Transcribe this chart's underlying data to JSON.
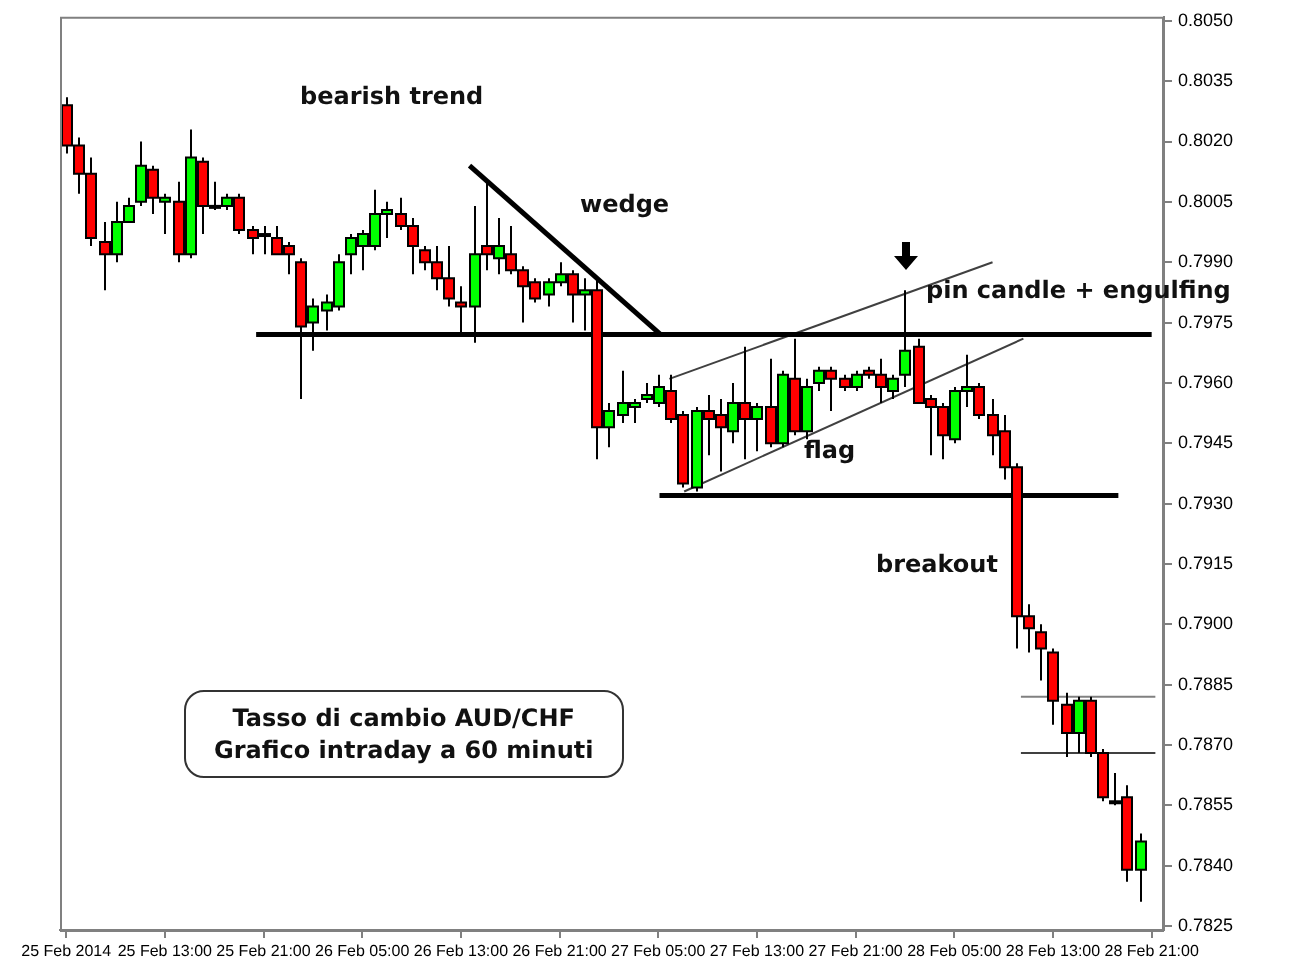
{
  "chart_data": {
    "type": "candlestick",
    "x": [
      "2014-02-25T05:00",
      "2014-02-25T06:00",
      "2014-02-25T07:00",
      "2014-02-25T08:00",
      "2014-02-25T09:00",
      "2014-02-25T10:00",
      "2014-02-25T11:00",
      "2014-02-25T12:00",
      "2014-02-25T13:00",
      "2014-02-25T14:00",
      "2014-02-25T15:00",
      "2014-02-25T16:00",
      "2014-02-25T17:00",
      "2014-02-25T18:00",
      "2014-02-25T19:00",
      "2014-02-25T20:00",
      "2014-02-25T21:00",
      "2014-02-25T22:00",
      "2014-02-25T23:00",
      "2014-02-26T00:00",
      "2014-02-26T01:00",
      "2014-02-26T02:00",
      "2014-02-26T03:00",
      "2014-02-26T04:00",
      "2014-02-26T05:00",
      "2014-02-26T06:00",
      "2014-02-26T07:00",
      "2014-02-26T08:00",
      "2014-02-26T09:00",
      "2014-02-26T10:00",
      "2014-02-26T11:00",
      "2014-02-26T12:00",
      "2014-02-26T13:00",
      "2014-02-26T14:00",
      "2014-02-26T15:00",
      "2014-02-26T16:00",
      "2014-02-26T17:00",
      "2014-02-26T18:00",
      "2014-02-26T19:00",
      "2014-02-26T20:00",
      "2014-02-26T21:00",
      "2014-02-26T22:00",
      "2014-02-26T23:00",
      "2014-02-27T00:00",
      "2014-02-27T01:00",
      "2014-02-27T02:00",
      "2014-02-27T03:00",
      "2014-02-27T04:00",
      "2014-02-27T05:00",
      "2014-02-27T06:00",
      "2014-02-27T07:00",
      "2014-02-27T08:00",
      "2014-02-27T09:00",
      "2014-02-27T10:00",
      "2014-02-27T11:00",
      "2014-02-27T12:00",
      "2014-02-27T13:00",
      "2014-02-27T14:00",
      "2014-02-27T15:00",
      "2014-02-27T16:00",
      "2014-02-27T17:00",
      "2014-02-27T18:00",
      "2014-02-27T19:00",
      "2014-02-27T20:00",
      "2014-02-27T21:00",
      "2014-02-27T22:00",
      "2014-02-27T23:00",
      "2014-02-28T00:00",
      "2014-02-28T01:00",
      "2014-02-28T02:00",
      "2014-02-28T03:00",
      "2014-02-28T04:00",
      "2014-02-28T05:00",
      "2014-02-28T06:00",
      "2014-02-28T07:00",
      "2014-02-28T08:00",
      "2014-02-28T09:00",
      "2014-02-28T10:00",
      "2014-02-28T11:00",
      "2014-02-28T12:00",
      "2014-02-28T13:00",
      "2014-02-28T14:00",
      "2014-02-28T15:00",
      "2014-02-28T16:00",
      "2014-02-28T17:00",
      "2014-02-28T18:00",
      "2014-02-28T19:00",
      "2014-02-28T20:00"
    ],
    "ohlc": [
      [
        0.8029,
        0.8031,
        0.8017,
        0.8019
      ],
      [
        0.8019,
        0.8021,
        0.8007,
        0.8012
      ],
      [
        0.8012,
        0.8016,
        0.7994,
        0.7996
      ],
      [
        0.7995,
        0.8,
        0.7983,
        0.7992
      ],
      [
        0.7992,
        0.8005,
        0.799,
        0.8
      ],
      [
        0.8,
        0.8006,
        0.8,
        0.8004
      ],
      [
        0.8005,
        0.802,
        0.8004,
        0.8014
      ],
      [
        0.8013,
        0.8014,
        0.8002,
        0.8006
      ],
      [
        0.8005,
        0.8007,
        0.7997,
        0.8006
      ],
      [
        0.8005,
        0.801,
        0.799,
        0.7992
      ],
      [
        0.7992,
        0.8023,
        0.7991,
        0.8016
      ],
      [
        0.8015,
        0.8016,
        0.7997,
        0.8004
      ],
      [
        0.8004,
        0.801,
        0.8003,
        0.8004
      ],
      [
        0.8004,
        0.8007,
        0.8003,
        0.8006
      ],
      [
        0.8006,
        0.8007,
        0.7997,
        0.7998
      ],
      [
        0.7998,
        0.7999,
        0.7992,
        0.7996
      ],
      [
        0.7997,
        0.7999,
        0.7992,
        0.7997
      ],
      [
        0.7996,
        0.7999,
        0.7992,
        0.7992
      ],
      [
        0.7994,
        0.7995,
        0.7987,
        0.7992
      ],
      [
        0.799,
        0.7991,
        0.7956,
        0.7974
      ],
      [
        0.7975,
        0.7981,
        0.7968,
        0.7979
      ],
      [
        0.7978,
        0.7982,
        0.7973,
        0.798
      ],
      [
        0.7979,
        0.7992,
        0.7978,
        0.799
      ],
      [
        0.7992,
        0.7997,
        0.7987,
        0.7996
      ],
      [
        0.7994,
        0.7998,
        0.7988,
        0.7997
      ],
      [
        0.7994,
        0.8008,
        0.7993,
        0.8002
      ],
      [
        0.8002,
        0.8005,
        0.7996,
        0.8003
      ],
      [
        0.8002,
        0.8006,
        0.7998,
        0.7999
      ],
      [
        0.7999,
        0.8001,
        0.7987,
        0.7994
      ],
      [
        0.7993,
        0.7994,
        0.7988,
        0.799
      ],
      [
        0.799,
        0.7994,
        0.7983,
        0.7986
      ],
      [
        0.7986,
        0.7994,
        0.7979,
        0.7981
      ],
      [
        0.798,
        0.7984,
        0.7972,
        0.7979
      ],
      [
        0.7979,
        0.8004,
        0.797,
        0.7992
      ],
      [
        0.7994,
        0.801,
        0.7988,
        0.7992
      ],
      [
        0.7991,
        0.8001,
        0.7987,
        0.7994
      ],
      [
        0.7992,
        0.7999,
        0.7987,
        0.7988
      ],
      [
        0.7988,
        0.7989,
        0.7975,
        0.7984
      ],
      [
        0.7985,
        0.7986,
        0.798,
        0.7981
      ],
      [
        0.7982,
        0.7986,
        0.7979,
        0.7985
      ],
      [
        0.7985,
        0.799,
        0.7984,
        0.7987
      ],
      [
        0.7987,
        0.7988,
        0.7975,
        0.7982
      ],
      [
        0.7982,
        0.7986,
        0.7973,
        0.7983
      ],
      [
        0.7983,
        0.7986,
        0.7941,
        0.7949
      ],
      [
        0.7949,
        0.7955,
        0.7944,
        0.7953
      ],
      [
        0.7952,
        0.7963,
        0.795,
        0.7955
      ],
      [
        0.7954,
        0.7956,
        0.795,
        0.7955
      ],
      [
        0.7956,
        0.796,
        0.7955,
        0.7957
      ],
      [
        0.7955,
        0.7962,
        0.7954,
        0.7959
      ],
      [
        0.7958,
        0.7962,
        0.795,
        0.7951
      ],
      [
        0.7952,
        0.7953,
        0.7934,
        0.7935
      ],
      [
        0.7934,
        0.7954,
        0.7933,
        0.7953
      ],
      [
        0.7953,
        0.7957,
        0.7942,
        0.7951
      ],
      [
        0.7952,
        0.7956,
        0.7938,
        0.7949
      ],
      [
        0.7948,
        0.796,
        0.7945,
        0.7955
      ],
      [
        0.7955,
        0.7969,
        0.7941,
        0.7951
      ],
      [
        0.7951,
        0.7955,
        0.7943,
        0.7954
      ],
      [
        0.7954,
        0.7966,
        0.7944,
        0.7945
      ],
      [
        0.7945,
        0.7963,
        0.7944,
        0.7962
      ],
      [
        0.7961,
        0.7971,
        0.7947,
        0.7948
      ],
      [
        0.7948,
        0.7961,
        0.7946,
        0.7959
      ],
      [
        0.796,
        0.7964,
        0.7958,
        0.7963
      ],
      [
        0.7963,
        0.7964,
        0.7953,
        0.7961
      ],
      [
        0.7961,
        0.7962,
        0.7958,
        0.7959
      ],
      [
        0.7959,
        0.7963,
        0.7958,
        0.7962
      ],
      [
        0.7963,
        0.7964,
        0.7961,
        0.7962
      ],
      [
        0.7962,
        0.7966,
        0.7955,
        0.7959
      ],
      [
        0.7958,
        0.7962,
        0.7956,
        0.7961
      ],
      [
        0.7962,
        0.7983,
        0.7959,
        0.7968
      ],
      [
        0.7969,
        0.7971,
        0.7955,
        0.7955
      ],
      [
        0.7956,
        0.7957,
        0.7942,
        0.7954
      ],
      [
        0.7954,
        0.7955,
        0.7941,
        0.7947
      ],
      [
        0.7946,
        0.7959,
        0.7945,
        0.7958
      ],
      [
        0.7958,
        0.7967,
        0.7954,
        0.7959
      ],
      [
        0.7959,
        0.796,
        0.7951,
        0.7952
      ],
      [
        0.7952,
        0.7956,
        0.7942,
        0.7947
      ],
      [
        0.7948,
        0.7952,
        0.7936,
        0.7939
      ],
      [
        0.7939,
        0.794,
        0.7894,
        0.7902
      ],
      [
        0.7902,
        0.7905,
        0.7893,
        0.7899
      ],
      [
        0.7898,
        0.79,
        0.7886,
        0.7894
      ],
      [
        0.7893,
        0.7894,
        0.7875,
        0.7881
      ],
      [
        0.788,
        0.7883,
        0.7867,
        0.7873
      ],
      [
        0.7873,
        0.7882,
        0.7868,
        0.7881
      ],
      [
        0.7881,
        0.7882,
        0.7867,
        0.7868
      ],
      [
        0.7868,
        0.7869,
        0.7856,
        0.7857
      ],
      [
        0.7856,
        0.7863,
        0.7855,
        0.7856
      ],
      [
        0.7857,
        0.786,
        0.7836,
        0.7839
      ],
      [
        0.7839,
        0.7848,
        0.7831,
        0.7846
      ]
    ],
    "colors": [
      "#ff0000",
      "#ff0000",
      "#ff0000",
      "#ff0000",
      "#00ff00",
      "#00ff00",
      "#00ff00",
      "#ff0000",
      "#00ff00",
      "#ff0000",
      "#00ff00",
      "#ff0000",
      "#00ff00",
      "#00ff00",
      "#ff0000",
      "#ff0000",
      "#00ff00",
      "#ff0000",
      "#ff0000",
      "#ff0000",
      "#00ff00",
      "#00ff00",
      "#00ff00",
      "#00ff00",
      "#00ff00",
      "#00ff00",
      "#00ff00",
      "#ff0000",
      "#ff0000",
      "#ff0000",
      "#ff0000",
      "#ff0000",
      "#ff0000",
      "#00ff00",
      "#ff0000",
      "#00ff00",
      "#ff0000",
      "#ff0000",
      "#ff0000",
      "#00ff00",
      "#00ff00",
      "#ff0000",
      "#00ff00",
      "#ff0000",
      "#00ff00",
      "#00ff00",
      "#00ff00",
      "#00ff00",
      "#00ff00",
      "#ff0000",
      "#ff0000",
      "#00ff00",
      "#ff0000",
      "#ff0000",
      "#00ff00",
      "#ff0000",
      "#00ff00",
      "#ff0000",
      "#00ff00",
      "#ff0000",
      "#00ff00",
      "#00ff00",
      "#ff0000",
      "#ff0000",
      "#00ff00",
      "#ff0000",
      "#ff0000",
      "#00ff00",
      "#00ff00",
      "#ff0000",
      "#ff0000",
      "#ff0000",
      "#00ff00",
      "#00ff00",
      "#ff0000",
      "#ff0000",
      "#ff0000",
      "#ff0000",
      "#ff0000",
      "#ff0000",
      "#ff0000",
      "#ff0000",
      "#00ff00",
      "#ff0000",
      "#ff0000",
      "#00ff00",
      "#ff0000",
      "#00ff00"
    ],
    "series": [
      {
        "type": "line",
        "color": "#000000",
        "x": [
          "2014-02-25T20:24",
          "2014-02-28T21:00"
        ],
        "values": [
          0.7972,
          0.7972
        ]
      },
      {
        "type": "line",
        "color": "#000000",
        "x": [
          "2014-02-26T13:42",
          "2014-02-27T05:12"
        ],
        "values": [
          0.8014,
          0.7972
        ]
      },
      {
        "type": "line",
        "color": "#000000",
        "x": [
          "2014-02-27T05:06",
          "2014-02-28T18:18"
        ],
        "values": [
          0.7932,
          0.7932
        ]
      },
      {
        "type": "line",
        "color": "#404040",
        "x": [
          "2014-02-27T05:54",
          "2014-02-28T08:06"
        ],
        "values": [
          0.7961,
          0.799
        ]
      },
      {
        "type": "line",
        "color": "#404040",
        "x": [
          "2014-02-27T07:06",
          "2014-02-28T10:36"
        ],
        "values": [
          0.7933,
          0.7971
        ]
      },
      {
        "type": "line",
        "color": "#808080",
        "x": [
          "2014-02-28T10:24",
          "2014-02-28T21:18"
        ],
        "values": [
          0.7882,
          0.7882
        ]
      },
      {
        "type": "line",
        "color": "#404040",
        "x": [
          "2014-02-28T10:24",
          "2014-02-28T21:18"
        ],
        "values": [
          0.7868,
          0.7868
        ]
      }
    ],
    "xlim": [
      "2014-02-25T04:30",
      "2014-02-28T22:00"
    ],
    "xticks": [
      {
        "value": "2014-02-25T05:00",
        "label": "25 Feb 2014"
      },
      {
        "value": "2014-02-25T13:00",
        "label": "25 Feb 13:00"
      },
      {
        "value": "2014-02-25T21:00",
        "label": "25 Feb 21:00"
      },
      {
        "value": "2014-02-26T05:00",
        "label": "26 Feb 05:00"
      },
      {
        "value": "2014-02-26T13:00",
        "label": "26 Feb 13:00"
      },
      {
        "value": "2014-02-26T21:00",
        "label": "26 Feb 21:00"
      },
      {
        "value": "2014-02-27T05:00",
        "label": "27 Feb 05:00"
      },
      {
        "value": "2014-02-27T13:00",
        "label": "27 Feb 13:00"
      },
      {
        "value": "2014-02-27T21:00",
        "label": "27 Feb 21:00"
      },
      {
        "value": "2014-02-28T05:00",
        "label": "28 Feb 05:00"
      },
      {
        "value": "2014-02-28T13:00",
        "label": "28 Feb 13:00"
      },
      {
        "value": "2014-02-28T21:00",
        "label": "28 Feb 21:00"
      }
    ],
    "ylim": [
      0.7824,
      0.8051
    ],
    "yticks": [
      {
        "value": 0.805,
        "label": "0.8050"
      },
      {
        "value": 0.8035,
        "label": "0.8035"
      },
      {
        "value": 0.802,
        "label": "0.8020"
      },
      {
        "value": 0.8005,
        "label": "0.8005"
      },
      {
        "value": 0.799,
        "label": "0.7990"
      },
      {
        "value": 0.7975,
        "label": "0.7975"
      },
      {
        "value": 0.796,
        "label": "0.7960"
      },
      {
        "value": 0.7945,
        "label": "0.7945"
      },
      {
        "value": 0.793,
        "label": "0.7930"
      },
      {
        "value": 0.7915,
        "label": "0.7915"
      },
      {
        "value": 0.79,
        "label": "0.7900"
      },
      {
        "value": 0.7885,
        "label": "0.7885"
      },
      {
        "value": 0.787,
        "label": "0.7870"
      },
      {
        "value": 0.7855,
        "label": "0.7855"
      },
      {
        "value": 0.784,
        "label": "0.7840"
      },
      {
        "value": 0.7825,
        "label": "0.7825"
      }
    ],
    "grid": false,
    "legend": false,
    "annotations": [
      "bearish trend",
      "wedge",
      "flag",
      "pin candle + engulfing",
      "breakout",
      "Tasso di cambio AUD/CHF\nGrafico intraday a 60 minuti"
    ]
  }
}
